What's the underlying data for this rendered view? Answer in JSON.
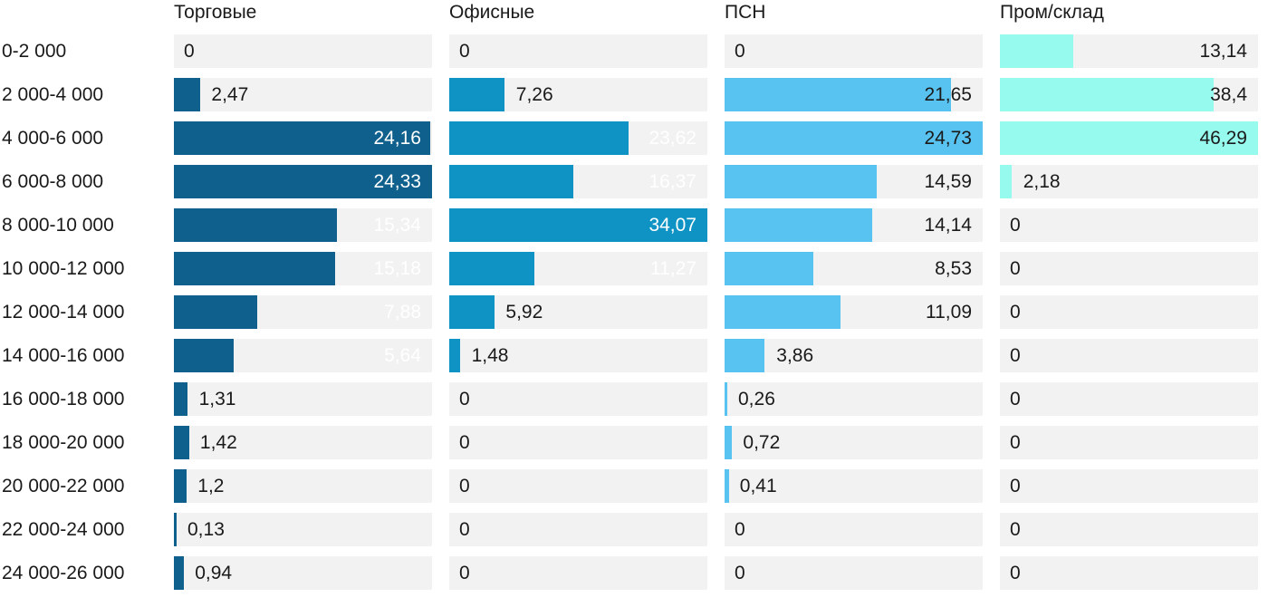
{
  "chart_data": {
    "type": "bar",
    "orientation": "horizontal",
    "title": "",
    "scaling": "per-series-max",
    "value_decimal_separator": ",",
    "track_color": "#f2f2f2",
    "text_color": "#1a1a1a",
    "categories": [
      "0-2 000",
      "2 000-4 000",
      "4 000-6 000",
      "6 000-8 000",
      "8 000-10 000",
      "10 000-12 000",
      "12 000-14 000",
      "14 000-16 000",
      "16 000-18 000",
      "18 000-20 000",
      "20 000-22 000",
      "22 000-24 000",
      "24 000-26 000"
    ],
    "series": [
      {
        "name": "Торговые",
        "color": "#0f608c",
        "label_color_inside": "#ffffff",
        "values": [
          0,
          2.47,
          24.16,
          24.33,
          15.34,
          15.18,
          7.88,
          5.64,
          1.31,
          1.42,
          1.2,
          0.13,
          0.94
        ],
        "labels": [
          "0",
          "2,47",
          "24,16",
          "24,33",
          "15,34",
          "15,18",
          "7,88",
          "5,64",
          "1,31",
          "1,42",
          "1,2",
          "0,13",
          "0,94"
        ]
      },
      {
        "name": "Офисные",
        "color": "#0f93c4",
        "label_color_inside": "#ffffff",
        "values": [
          0,
          7.26,
          23.62,
          16.37,
          34.07,
          11.27,
          5.92,
          1.48,
          0,
          0,
          0,
          0,
          0
        ],
        "labels": [
          "0",
          "7,26",
          "23,62",
          "16,37",
          "34,07",
          "11,27",
          "5,92",
          "1,48",
          "0",
          "0",
          "0",
          "0",
          "0"
        ]
      },
      {
        "name": "ПСН",
        "color": "#58c3f0",
        "label_color_inside": "#1a1a1a",
        "values": [
          0,
          21.65,
          24.73,
          14.59,
          14.14,
          8.53,
          11.09,
          3.86,
          0.26,
          0.72,
          0.41,
          0,
          0
        ],
        "labels": [
          "0",
          "21,65",
          "24,73",
          "14,59",
          "14,14",
          "8,53",
          "11,09",
          "3,86",
          "0,26",
          "0,72",
          "0,41",
          "0",
          "0"
        ]
      },
      {
        "name": "Пром/склад",
        "color": "#96fbee",
        "label_color_inside": "#1a1a1a",
        "values": [
          13.14,
          38.4,
          46.29,
          2.18,
          0,
          0,
          0,
          0,
          0,
          0,
          0,
          0,
          0
        ],
        "labels": [
          "13,14",
          "38,4",
          "46,29",
          "2,18",
          "0",
          "0",
          "0",
          "0",
          "0",
          "0",
          "0",
          "0",
          "0"
        ]
      }
    ]
  }
}
